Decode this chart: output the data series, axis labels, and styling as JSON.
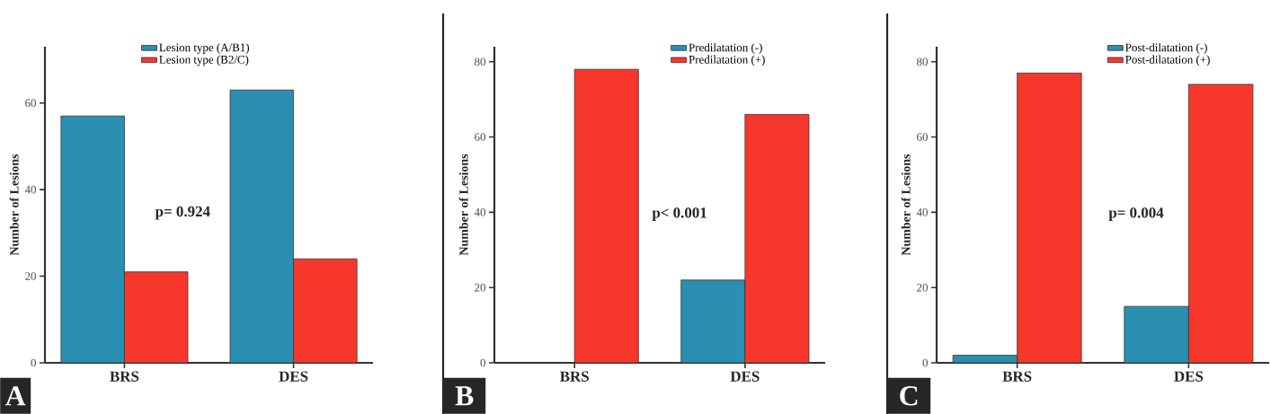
{
  "chart_data": [
    {
      "type": "bar",
      "title": "A",
      "categories": [
        "BRS",
        "DES"
      ],
      "ylabel": "Number of Lesions",
      "ylim": [
        0,
        73
      ],
      "yticks": [
        0,
        20,
        40,
        60
      ],
      "legend": "top right",
      "annotations": [
        "p= 0.924"
      ],
      "series": [
        {
          "name": "Lesion type (A/B1)",
          "color": "#2a8fb0",
          "values": [
            57,
            63
          ]
        },
        {
          "name": "Lesion type (B2/C)",
          "color": "#f8372c",
          "values": [
            21,
            24
          ]
        }
      ]
    },
    {
      "type": "bar",
      "title": "B",
      "categories": [
        "BRS",
        "DES"
      ],
      "ylabel": "Number of Lesions",
      "ylim": [
        0,
        84
      ],
      "yticks": [
        0,
        20,
        40,
        60,
        80
      ],
      "legend": "top right",
      "annotations": [
        "p< 0.001"
      ],
      "series": [
        {
          "name": "Predilatation (-)",
          "color": "#2a8fb0",
          "values": [
            0,
            22
          ]
        },
        {
          "name": "Predilatation (+)",
          "color": "#f8372c",
          "values": [
            78,
            66
          ]
        }
      ]
    },
    {
      "type": "bar",
      "title": "C",
      "categories": [
        "BRS",
        "DES"
      ],
      "ylabel": "Number of Lesions",
      "ylim": [
        0,
        84
      ],
      "yticks": [
        0,
        20,
        40,
        60,
        80
      ],
      "legend": "top right",
      "annotations": [
        "p= 0.004"
      ],
      "series": [
        {
          "name": "Post-dilatation (-)",
          "color": "#2a8fb0",
          "values": [
            2,
            15
          ]
        },
        {
          "name": "Post-dilatation (+)",
          "color": "#f8372c",
          "values": [
            77,
            74
          ]
        }
      ]
    }
  ]
}
